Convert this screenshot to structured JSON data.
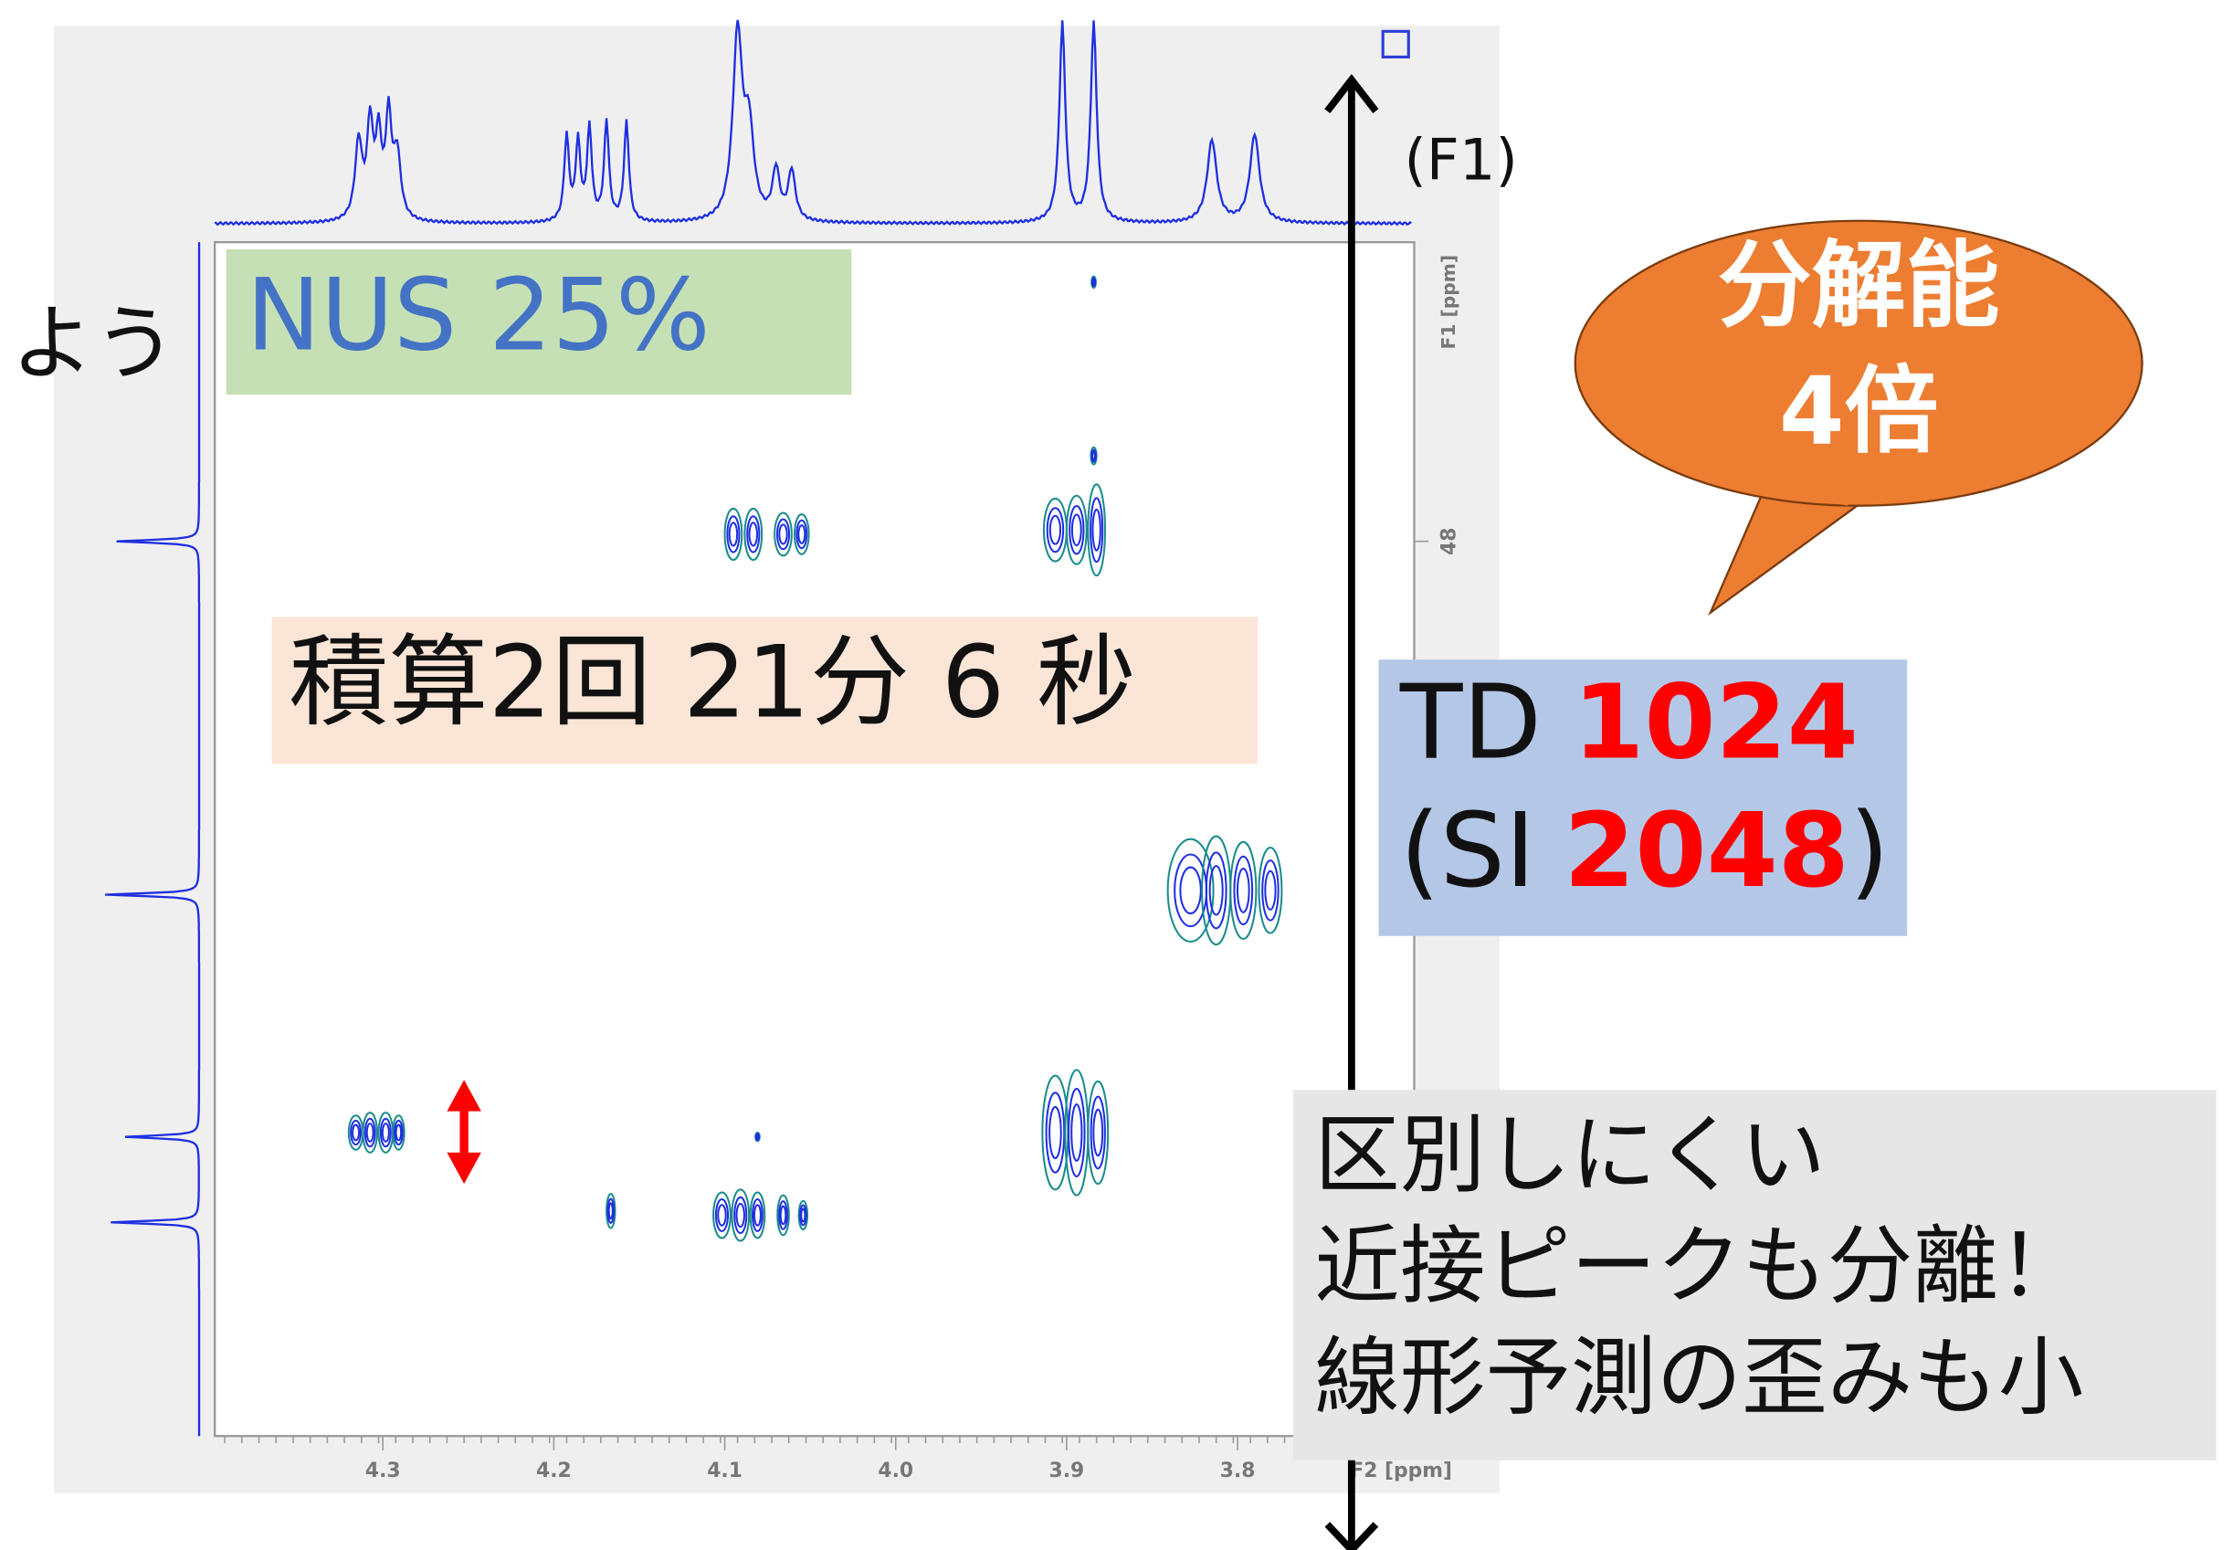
{
  "left_cut_text": "よう",
  "labels": {
    "nus": "NUS 25%",
    "scans": "積算2回 21分 6 秒"
  },
  "td_box": {
    "td_label": "TD",
    "td_value": "1024",
    "si_open": "(SI",
    "si_value": "2048",
    "si_close": ")"
  },
  "callout": {
    "line1": "分解能",
    "line2": "4倍"
  },
  "note": {
    "lines": [
      "区別しにくい",
      "近接ピークも分離！",
      "線形予測の歪みも小"
    ]
  },
  "axis_f1_label": "(F1)",
  "spectrum": {
    "x_ticks": [
      "4.3",
      "4.2",
      "4.1",
      "4.0",
      "3.9",
      "3.8"
    ],
    "x_axis_label": "F2 [ppm]",
    "y_ticks": [
      "48"
    ],
    "y_axis_label": "F1 [ppm]"
  }
}
